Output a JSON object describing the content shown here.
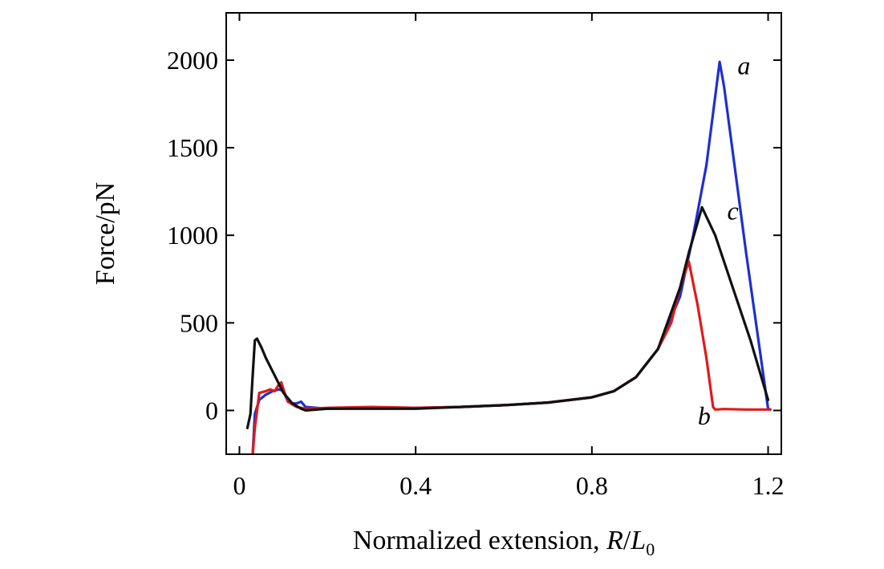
{
  "chart_data": {
    "type": "line",
    "xlabel": "Normalized extension, ",
    "xlabel_var_R": "R",
    "xlabel_slash": "/",
    "xlabel_var_L": "L",
    "xlabel_sub": "0",
    "ylabel": "Force/pN",
    "xlim": [
      -0.03,
      1.23
    ],
    "ylim": [
      -250,
      2270
    ],
    "xticks": [
      0,
      0.4,
      0.8,
      1.2
    ],
    "xtick_labels": [
      "0",
      "0.4",
      "0.8",
      "1.2"
    ],
    "yticks": [
      0,
      500,
      1000,
      1500,
      2000
    ],
    "ytick_labels": [
      "0",
      "500",
      "1000",
      "1500",
      "2000"
    ],
    "grid": false,
    "series": [
      {
        "name": "a",
        "color": "#1f2fd0",
        "label_pos": [
          1.145,
          1920
        ],
        "points": [
          [
            0.03,
            -250
          ],
          [
            0.035,
            -20
          ],
          [
            0.045,
            60
          ],
          [
            0.06,
            90
          ],
          [
            0.075,
            110
          ],
          [
            0.09,
            120
          ],
          [
            0.1,
            110
          ],
          [
            0.11,
            50
          ],
          [
            0.12,
            40
          ],
          [
            0.13,
            40
          ],
          [
            0.14,
            50
          ],
          [
            0.15,
            20
          ],
          [
            0.2,
            10
          ],
          [
            0.3,
            15
          ],
          [
            0.4,
            15
          ],
          [
            0.5,
            20
          ],
          [
            0.6,
            30
          ],
          [
            0.7,
            45
          ],
          [
            0.8,
            75
          ],
          [
            0.85,
            110
          ],
          [
            0.9,
            190
          ],
          [
            0.95,
            350
          ],
          [
            1.0,
            650
          ],
          [
            1.03,
            1000
          ],
          [
            1.06,
            1400
          ],
          [
            1.09,
            1990
          ],
          [
            1.1,
            1850
          ],
          [
            1.15,
            900
          ],
          [
            1.2,
            10
          ],
          [
            1.205,
            5
          ]
        ]
      },
      {
        "name": "b",
        "color": "#e01a1a",
        "label_pos": [
          1.055,
          -80
        ],
        "points": [
          [
            0.03,
            -250
          ],
          [
            0.035,
            -100
          ],
          [
            0.045,
            100
          ],
          [
            0.06,
            110
          ],
          [
            0.07,
            120
          ],
          [
            0.08,
            110
          ],
          [
            0.09,
            150
          ],
          [
            0.095,
            160
          ],
          [
            0.1,
            120
          ],
          [
            0.11,
            50
          ],
          [
            0.13,
            20
          ],
          [
            0.15,
            10
          ],
          [
            0.2,
            15
          ],
          [
            0.3,
            20
          ],
          [
            0.4,
            15
          ],
          [
            0.5,
            20
          ],
          [
            0.6,
            30
          ],
          [
            0.7,
            45
          ],
          [
            0.8,
            75
          ],
          [
            0.85,
            110
          ],
          [
            0.9,
            190
          ],
          [
            0.95,
            350
          ],
          [
            0.98,
            500
          ],
          [
            1.0,
            700
          ],
          [
            1.02,
            850
          ],
          [
            1.04,
            600
          ],
          [
            1.06,
            300
          ],
          [
            1.075,
            20
          ],
          [
            1.08,
            5
          ],
          [
            1.1,
            8
          ],
          [
            1.15,
            5
          ],
          [
            1.2,
            5
          ],
          [
            1.205,
            5
          ]
        ]
      },
      {
        "name": "c",
        "color": "#111111",
        "label_pos": [
          1.12,
          1090
        ],
        "points": [
          [
            0.018,
            -100
          ],
          [
            0.025,
            -20
          ],
          [
            0.03,
            200
          ],
          [
            0.035,
            400
          ],
          [
            0.04,
            410
          ],
          [
            0.05,
            360
          ],
          [
            0.06,
            300
          ],
          [
            0.08,
            200
          ],
          [
            0.1,
            100
          ],
          [
            0.12,
            40
          ],
          [
            0.14,
            10
          ],
          [
            0.15,
            0
          ],
          [
            0.2,
            10
          ],
          [
            0.3,
            10
          ],
          [
            0.4,
            10
          ],
          [
            0.5,
            20
          ],
          [
            0.6,
            30
          ],
          [
            0.7,
            45
          ],
          [
            0.8,
            75
          ],
          [
            0.85,
            110
          ],
          [
            0.9,
            190
          ],
          [
            0.95,
            350
          ],
          [
            1.0,
            700
          ],
          [
            1.02,
            900
          ],
          [
            1.05,
            1160
          ],
          [
            1.08,
            1000
          ],
          [
            1.12,
            700
          ],
          [
            1.16,
            400
          ],
          [
            1.2,
            60
          ]
        ]
      }
    ]
  }
}
